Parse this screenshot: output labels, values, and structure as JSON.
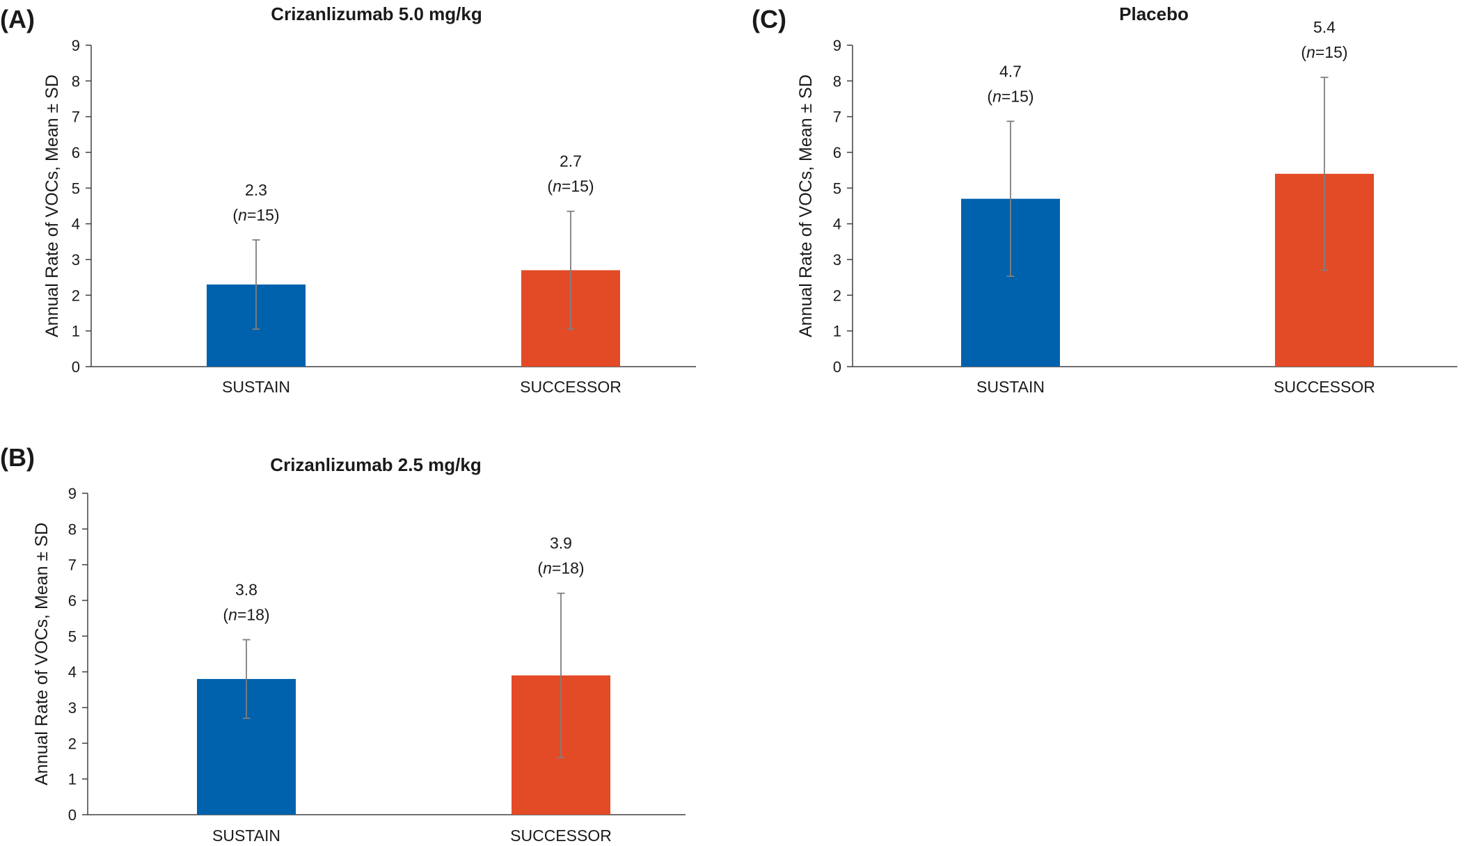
{
  "colors": {
    "sustain": "#0061ac",
    "successor": "#e34a26",
    "axis": "#404040",
    "error_bar": "#7f7f7f",
    "text": "#1a1a1a"
  },
  "chart_data": [
    {
      "panel_label": "(A)",
      "title": "Crizanlizumab 5.0 mg/kg",
      "type": "bar",
      "ylabel": "Annual Rate of VOCs, Mean ± SD",
      "ylim": [
        0,
        9
      ],
      "yticks": [
        "0",
        "1",
        "2",
        "3",
        "4",
        "5",
        "6",
        "7",
        "8",
        "9"
      ],
      "categories": [
        "SUSTAIN",
        "SUCCESSOR"
      ],
      "values": [
        2.3,
        2.7
      ],
      "sd": [
        1.25,
        1.65
      ],
      "value_labels": [
        "2.3",
        "2.7"
      ],
      "n_labels": [
        {
          "prefix": "(",
          "italic": "n",
          "suffix": "=15)"
        },
        {
          "prefix": "(",
          "italic": "n",
          "suffix": "=15)"
        }
      ],
      "grid": false
    },
    {
      "panel_label": "(B)",
      "title": "Crizanlizumab 2.5 mg/kg",
      "type": "bar",
      "ylabel": "Annual Rate of VOCs, Mean ± SD",
      "ylim": [
        0,
        9
      ],
      "yticks": [
        "0",
        "1",
        "2",
        "3",
        "4",
        "5",
        "6",
        "7",
        "8",
        "9"
      ],
      "categories": [
        "SUSTAIN",
        "SUCCESSOR"
      ],
      "values": [
        3.8,
        3.9
      ],
      "sd": [
        1.1,
        2.3
      ],
      "value_labels": [
        "3.8",
        "3.9"
      ],
      "n_labels": [
        {
          "prefix": "(",
          "italic": "n",
          "suffix": "=18)"
        },
        {
          "prefix": "(",
          "italic": "n",
          "suffix": "=18)"
        }
      ],
      "grid": false
    },
    {
      "panel_label": "(C)",
      "title": "Placebo",
      "type": "bar",
      "ylabel": "Annual Rate of VOCs, Mean ± SD",
      "ylim": [
        0,
        9
      ],
      "yticks": [
        "0",
        "1",
        "2",
        "3",
        "4",
        "5",
        "6",
        "7",
        "8",
        "9"
      ],
      "categories": [
        "SUSTAIN",
        "SUCCESSOR"
      ],
      "values": [
        4.7,
        5.4
      ],
      "sd": [
        2.17,
        2.7
      ],
      "value_labels": [
        "4.7",
        "5.4"
      ],
      "n_labels": [
        {
          "prefix": "(",
          "italic": "n",
          "suffix": "=15)"
        },
        {
          "prefix": "(",
          "italic": "n",
          "suffix": "=15)"
        }
      ],
      "grid": false
    }
  ]
}
